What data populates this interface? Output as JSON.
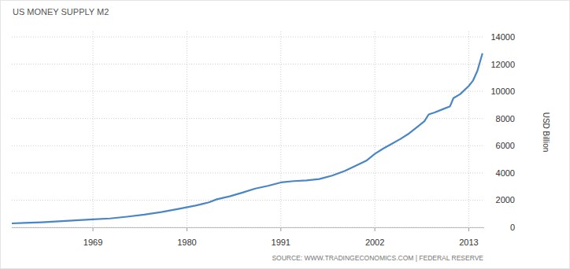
{
  "chart_data": {
    "type": "line",
    "title": "US MONEY SUPPLY M2",
    "y_label": "USD Billion",
    "source": "SOURCE: WWW.TRADINGECONOMICS.COM | FEDERAL RESERVE",
    "x": [
      1959.5,
      1961,
      1963,
      1965,
      1967,
      1969,
      1971,
      1973,
      1975,
      1977,
      1979,
      1981,
      1982.5,
      1983.5,
      1985,
      1986.5,
      1988,
      1989.5,
      1991,
      1992.5,
      1994,
      1995.5,
      1997,
      1998.5,
      2000,
      2001,
      2002,
      2003,
      2004,
      2005,
      2006,
      2007,
      2007.8,
      2008.3,
      2009,
      2010,
      2010.8,
      2011.2,
      2012,
      2013,
      2013.5,
      2014,
      2014.6
    ],
    "values": [
      290,
      320,
      370,
      440,
      510,
      580,
      650,
      780,
      930,
      1120,
      1350,
      1600,
      1820,
      2060,
      2280,
      2550,
      2850,
      3050,
      3300,
      3400,
      3450,
      3550,
      3800,
      4150,
      4600,
      4900,
      5400,
      5800,
      6150,
      6500,
      6900,
      7400,
      7800,
      8300,
      8450,
      8700,
      8900,
      9500,
      9800,
      10400,
      10800,
      11500,
      12800
    ],
    "color": "#4a86c5",
    "xlim": [
      1959.5,
      2014.8
    ],
    "xticks": [
      1969,
      1980,
      1991,
      2002,
      2013
    ],
    "ylim": [
      0,
      14000
    ],
    "yticks": [
      0,
      2000,
      4000,
      6000,
      8000,
      10000,
      12000,
      14000
    ],
    "grid": true
  }
}
